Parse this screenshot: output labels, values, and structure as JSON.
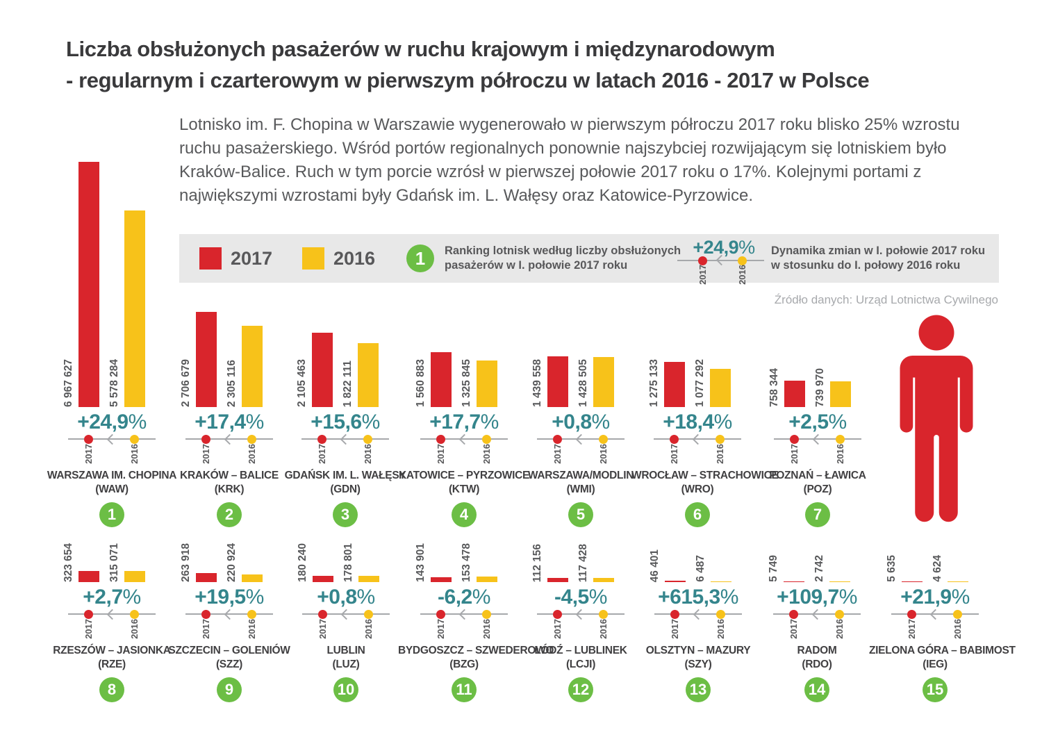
{
  "title_line1": "Liczba obsłużonych pasażerów w ruchu krajowym i międzynarodowym",
  "title_line2": "- regularnym i czarterowym w pierwszym półroczu w latach 2016 - 2017 w Polsce",
  "intro": "Lotnisko im. F. Chopina w Warszawie wygenerowało w pierwszym półroczu 2017 roku blisko 25% wzrostu ruchu pasażerskiego. Wśród portów regionalnych ponownie najszybciej rozwijającym się lotniskiem było Kraków-Balice. Ruch w tym porcie wzrósł w pierwszej połowie 2017 roku o 17%. Kolejnymi portami z największymi wzrostami były Gdańsk im. L. Wałęsy oraz Katowice-Pyrzowice.",
  "legend": {
    "year_2017": "2017",
    "year_2016": "2016",
    "rank_badge": "1",
    "ranking_note_line1": "Ranking lotnisk według liczby obsłużonych",
    "ranking_note_line2": "pasażerów w I. połowie 2017 roku",
    "dynamics_pct": "+24,9%",
    "dynamics_note_line1": "Dynamika zmian w I. połowie 2017 roku",
    "dynamics_note_line2": "w stosunku do I. połowy 2016 roku"
  },
  "source": "Źródło danych: Urząd Lotnictwa Cywilnego",
  "colors": {
    "red_2017": "#d9252c",
    "yellow_2016": "#f7c21a",
    "teal_percent": "#34858c",
    "green_rank": "#6cbe45",
    "text_dark": "#414042",
    "text_gray": "#58595b",
    "strip_bg": "#e8e8e8"
  },
  "chart_data": {
    "type": "bar",
    "series_years": [
      "2017",
      "2016"
    ],
    "unit": "passengers (I half-year)",
    "airports": [
      {
        "rank": "1",
        "name": "WARSZAWA IM. CHOPINA",
        "code": "(WAW)",
        "v2017": 6967627,
        "v2017_label": "6 967 627",
        "v2016": 5578284,
        "v2016_label": "5 578 284",
        "change": "+24,9%"
      },
      {
        "rank": "2",
        "name": "KRAKÓW – BALICE",
        "code": "(KRK)",
        "v2017": 2706679,
        "v2017_label": "2 706 679",
        "v2016": 2305116,
        "v2016_label": "2 305 116",
        "change": "+17,4%"
      },
      {
        "rank": "3",
        "name": "GDAŃSK IM. L. WAŁĘSY",
        "code": "(GDN)",
        "v2017": 2105463,
        "v2017_label": "2 105 463",
        "v2016": 1822111,
        "v2016_label": "1 822 111",
        "change": "+15,6%"
      },
      {
        "rank": "4",
        "name": "KATOWICE – PYRZOWICE",
        "code": "(KTW)",
        "v2017": 1560883,
        "v2017_label": "1 560 883",
        "v2016": 1325845,
        "v2016_label": "1 325 845",
        "change": "+17,7%"
      },
      {
        "rank": "5",
        "name": "WARSZAWA/MODLIN",
        "code": "(WMI)",
        "v2017": 1439558,
        "v2017_label": "1 439 558",
        "v2016": 1428505,
        "v2016_label": "1 428 505",
        "change": "+0,8%"
      },
      {
        "rank": "6",
        "name": "WROCŁAW – STRACHOWICE",
        "code": "(WRO)",
        "v2017": 1275133,
        "v2017_label": "1 275 133",
        "v2016": 1077292,
        "v2016_label": "1 077 292",
        "change": "+18,4%"
      },
      {
        "rank": "7",
        "name": "POZNAŃ – ŁAWICA",
        "code": "(POZ)",
        "v2017": 758344,
        "v2017_label": "758 344",
        "v2016": 739970,
        "v2016_label": "739 970",
        "change": "+2,5%"
      },
      {
        "rank": "8",
        "name": "RZESZÓW – JASIONKA",
        "code": "(RZE)",
        "v2017": 323654,
        "v2017_label": "323 654",
        "v2016": 315071,
        "v2016_label": "315 071",
        "change": "+2,7%"
      },
      {
        "rank": "9",
        "name": "SZCZECIN – GOLENIÓW",
        "code": "(SZZ)",
        "v2017": 263918,
        "v2017_label": "263 918",
        "v2016": 220924,
        "v2016_label": "220 924",
        "change": "+19,5%"
      },
      {
        "rank": "10",
        "name": "LUBLIN",
        "code": "(LUZ)",
        "v2017": 180240,
        "v2017_label": "180 240",
        "v2016": 178801,
        "v2016_label": "178 801",
        "change": "+0,8%"
      },
      {
        "rank": "11",
        "name": "BYDGOSZCZ – SZWEDEROWO",
        "code": "(BZG)",
        "v2017": 143901,
        "v2017_label": "143 901",
        "v2016": 153478,
        "v2016_label": "153 478",
        "change": "-6,2%"
      },
      {
        "rank": "12",
        "name": "ŁÓDŹ – LUBLINEK",
        "code": "(LCJI)",
        "v2017": 112156,
        "v2017_label": "112 156",
        "v2016": 117428,
        "v2016_label": "117 428",
        "change": "-4,5%"
      },
      {
        "rank": "13",
        "name": "OLSZTYN – MAZURY",
        "code": "(SZY)",
        "v2017": 46401,
        "v2017_label": "46 401",
        "v2016": 6487,
        "v2016_label": "6 487",
        "change": "+615,3%"
      },
      {
        "rank": "14",
        "name": "RADOM",
        "code": "(RDO)",
        "v2017": 5749,
        "v2017_label": "5 749",
        "v2016": 2742,
        "v2016_label": "2 742",
        "change": "+109,7%"
      },
      {
        "rank": "15",
        "name": "ZIELONA GÓRA – BABIMOST",
        "code": "(IEG)",
        "v2017": 5635,
        "v2017_label": "5 635",
        "v2016": 4624,
        "v2016_label": "4 624",
        "change": "+21,9%"
      }
    ]
  }
}
